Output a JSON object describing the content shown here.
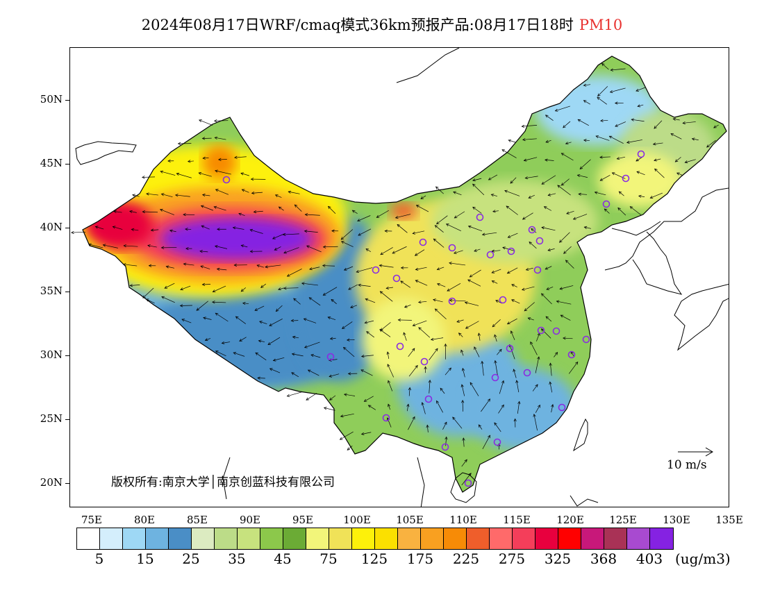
{
  "title": {
    "main": "2024年08月17日WRF/cmaq模式36km预报产品:08月17日18时",
    "pollutant": "PM10"
  },
  "axes": {
    "y_labels": [
      "50N",
      "45N",
      "40N",
      "35N",
      "30N",
      "25N",
      "20N"
    ],
    "x_labels": [
      "75E",
      "80E",
      "85E",
      "90E",
      "95E",
      "100E",
      "105E",
      "110E",
      "115E",
      "120E",
      "125E",
      "130E",
      "135E"
    ]
  },
  "copyright": "版权所有:南京大学│南京创蓝科技有限公司",
  "wind_scale": "10 m/s",
  "colorbar": {
    "colors": [
      "#ffffff",
      "#d4eefc",
      "#9ed8f5",
      "#6eb3e0",
      "#4a8ec6",
      "#dcebc1",
      "#bcdc88",
      "#c7e27e",
      "#8cc84b",
      "#6bab35",
      "#f2f57a",
      "#f0e258",
      "#fdf10a",
      "#fbe000",
      "#f9b240",
      "#f9a020",
      "#f78b06",
      "#ef5e2b",
      "#ff6a6a",
      "#f43e5a",
      "#e8003e",
      "#ff0000",
      "#c8187a",
      "#a93256",
      "#a84ad0",
      "#8522e2"
    ],
    "labels": [
      "5",
      "15",
      "25",
      "35",
      "45",
      "75",
      "125",
      "175",
      "225",
      "275",
      "325",
      "368",
      "403"
    ],
    "unit": "(ug/m3)"
  },
  "map": {
    "land_outline_color": "#000000",
    "background_color": "#ffffff",
    "city_marker_color": "#8a2be2"
  }
}
